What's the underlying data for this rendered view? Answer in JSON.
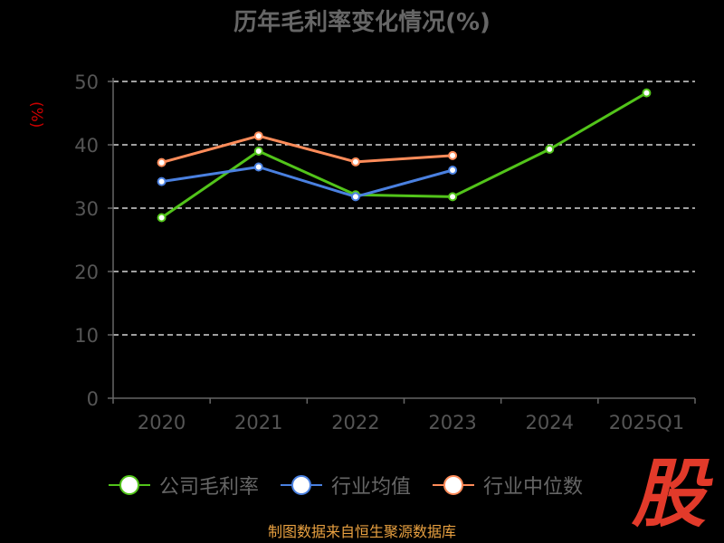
{
  "chart_data": {
    "type": "line",
    "title": "历年毛利率变化情况(%)",
    "ylabel": "(%)",
    "xlabel": "",
    "categories": [
      "2020",
      "2021",
      "2022",
      "2023",
      "2024",
      "2025Q1"
    ],
    "ylim": [
      0,
      50
    ],
    "yticks": [
      0,
      10,
      20,
      30,
      40,
      50
    ],
    "grid": true,
    "legend_position": "bottom",
    "series": [
      {
        "name": "公司毛利率",
        "color": "#52c41a",
        "values": [
          28.5,
          39.0,
          32.1,
          31.8,
          39.3,
          48.2
        ]
      },
      {
        "name": "行业均值",
        "color": "#4a80e0",
        "values": [
          34.2,
          36.5,
          31.8,
          36.0,
          null,
          null
        ]
      },
      {
        "name": "行业中位数",
        "color": "#ff8c5a",
        "values": [
          37.2,
          41.4,
          37.3,
          38.3,
          null,
          null
        ]
      }
    ]
  },
  "source": "制图数据来自恒生聚源数据库",
  "logo_text": "股"
}
